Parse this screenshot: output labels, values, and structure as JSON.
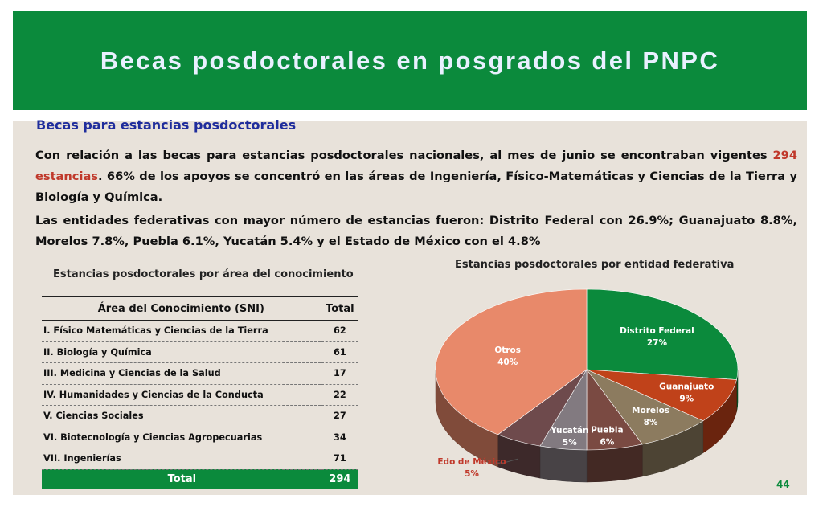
{
  "header": {
    "title": "Becas posdoctorales en posgrados del PNPC"
  },
  "subtitle": "Becas  para estancias posdoctorales",
  "paragraph1": {
    "part1": "Con relación a las becas para estancias posdoctorales nacionales, al mes de junio se encontraban vigentes ",
    "highlight": "294 estancias",
    "part2": ". 66% de los apoyos se concentró en las áreas de Ingeniería, Físico-Matemáticas y Ciencias de la Tierra y Biología y Química."
  },
  "paragraph2": "Las entidades federativas con mayor número de estancias fueron: Distrito Federal con 26.9%; Guanajuato 8.8%, Morelos 7.8%, Puebla 6.1%, Yucatán 5.4% y el Estado de México con el 4.8%",
  "table_caption": "Estancias posdoctorales por área del conocimiento",
  "chart_caption": "Estancias posdoctorales por entidad federativa",
  "table": {
    "headers": [
      "Área del Conocimiento (SNI)",
      "Total"
    ],
    "rows": [
      [
        "I. Físico Matemáticas y Ciencias de la Tierra",
        "62"
      ],
      [
        "II. Biología y Química",
        "61"
      ],
      [
        "III.  Medicina y Ciencias de la Salud",
        "17"
      ],
      [
        "IV. Humanidades y Ciencias de la Conducta",
        "22"
      ],
      [
        "V. Ciencias Sociales",
        "27"
      ],
      [
        "VI. Biotecnología y Ciencias Agropecuarias",
        "34"
      ],
      [
        "VII. Ingenierías",
        "71"
      ]
    ],
    "total": [
      "Total",
      "294"
    ]
  },
  "page_number": "44",
  "chart_data": {
    "type": "pie",
    "title": "Estancias posdoctorales por entidad federativa",
    "categories": [
      "Distrito Federal",
      "Guanajuato",
      "Morelos",
      "Puebla",
      "Yucatán",
      "Edo de México",
      "Otros"
    ],
    "values": [
      27,
      9,
      8,
      6,
      5,
      5,
      40
    ],
    "labels": [
      "27%",
      "9%",
      "8%",
      "6%",
      "5%",
      "5%",
      "40%"
    ],
    "colors": [
      "#0b8a3c",
      "#c0421a",
      "#8c7b5f",
      "#7a4a42",
      "#827a80",
      "#6e4a4c",
      "#e8896a"
    ],
    "style": "3d"
  }
}
